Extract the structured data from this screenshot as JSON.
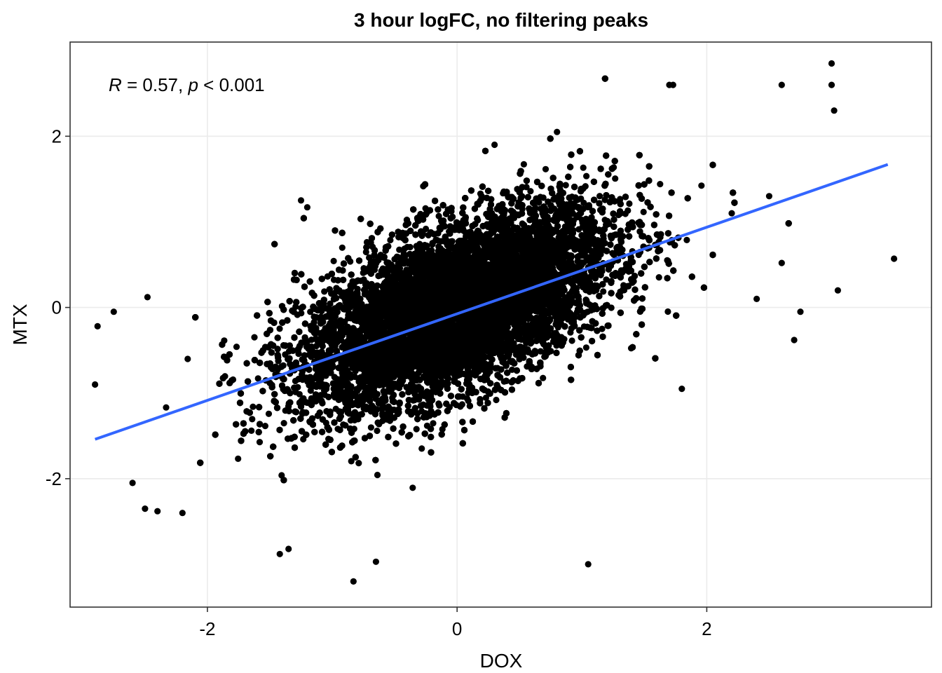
{
  "chart_data": {
    "type": "scatter",
    "title": "3 hour logFC, no filtering peaks",
    "xlabel": "DOX",
    "ylabel": "MTX",
    "xlim": [
      -3.1,
      3.8
    ],
    "ylim": [
      -3.5,
      3.1
    ],
    "x_ticks": [
      -2,
      0,
      2
    ],
    "y_ticks": [
      -2,
      0,
      2
    ],
    "x_tick_labels": [
      "-2",
      "0",
      "2"
    ],
    "y_tick_labels": [
      "-2",
      "0",
      "2"
    ],
    "grid": true,
    "annotation": {
      "r_symbol": "R",
      "r_text": " = 0.57, ",
      "p_symbol": "p",
      "p_text": " < 0.001"
    },
    "cloud": {
      "description": "dense black point cloud of peaks",
      "x_mean": 0.0,
      "y_mean": 0.0,
      "x_sd": 0.62,
      "y_sd": 0.58,
      "correlation": 0.57
    },
    "outliers": [
      [
        3.0,
        2.85
      ],
      [
        3.0,
        2.6
      ],
      [
        3.02,
        2.3
      ],
      [
        2.6,
        2.6
      ],
      [
        1.7,
        2.6
      ],
      [
        1.73,
        2.6
      ],
      [
        3.5,
        0.57
      ],
      [
        3.05,
        0.2
      ],
      [
        2.75,
        -0.05
      ],
      [
        2.2,
        1.1
      ],
      [
        1.8,
        -0.95
      ],
      [
        1.05,
        -3.0
      ],
      [
        -0.83,
        -3.2
      ],
      [
        -0.65,
        -2.97
      ],
      [
        -1.42,
        -2.88
      ],
      [
        -1.35,
        -2.82
      ],
      [
        -2.9,
        -0.9
      ],
      [
        -2.88,
        -0.22
      ],
      [
        -2.75,
        -0.05
      ],
      [
        -2.48,
        0.12
      ],
      [
        -2.6,
        -2.05
      ],
      [
        -2.4,
        -2.38
      ],
      [
        -2.5,
        -2.35
      ],
      [
        -2.2,
        -2.4
      ],
      [
        -1.25,
        1.25
      ],
      [
        -1.2,
        1.17
      ],
      [
        0.3,
        1.9
      ],
      [
        0.8,
        2.05
      ],
      [
        2.5,
        1.3
      ],
      [
        2.6,
        0.52
      ],
      [
        2.7,
        -0.38
      ],
      [
        2.4,
        0.1
      ]
    ],
    "fit_line": {
      "color": "#3366ff",
      "x": [
        -2.9,
        3.45
      ],
      "y": [
        -1.54,
        1.67
      ]
    }
  }
}
